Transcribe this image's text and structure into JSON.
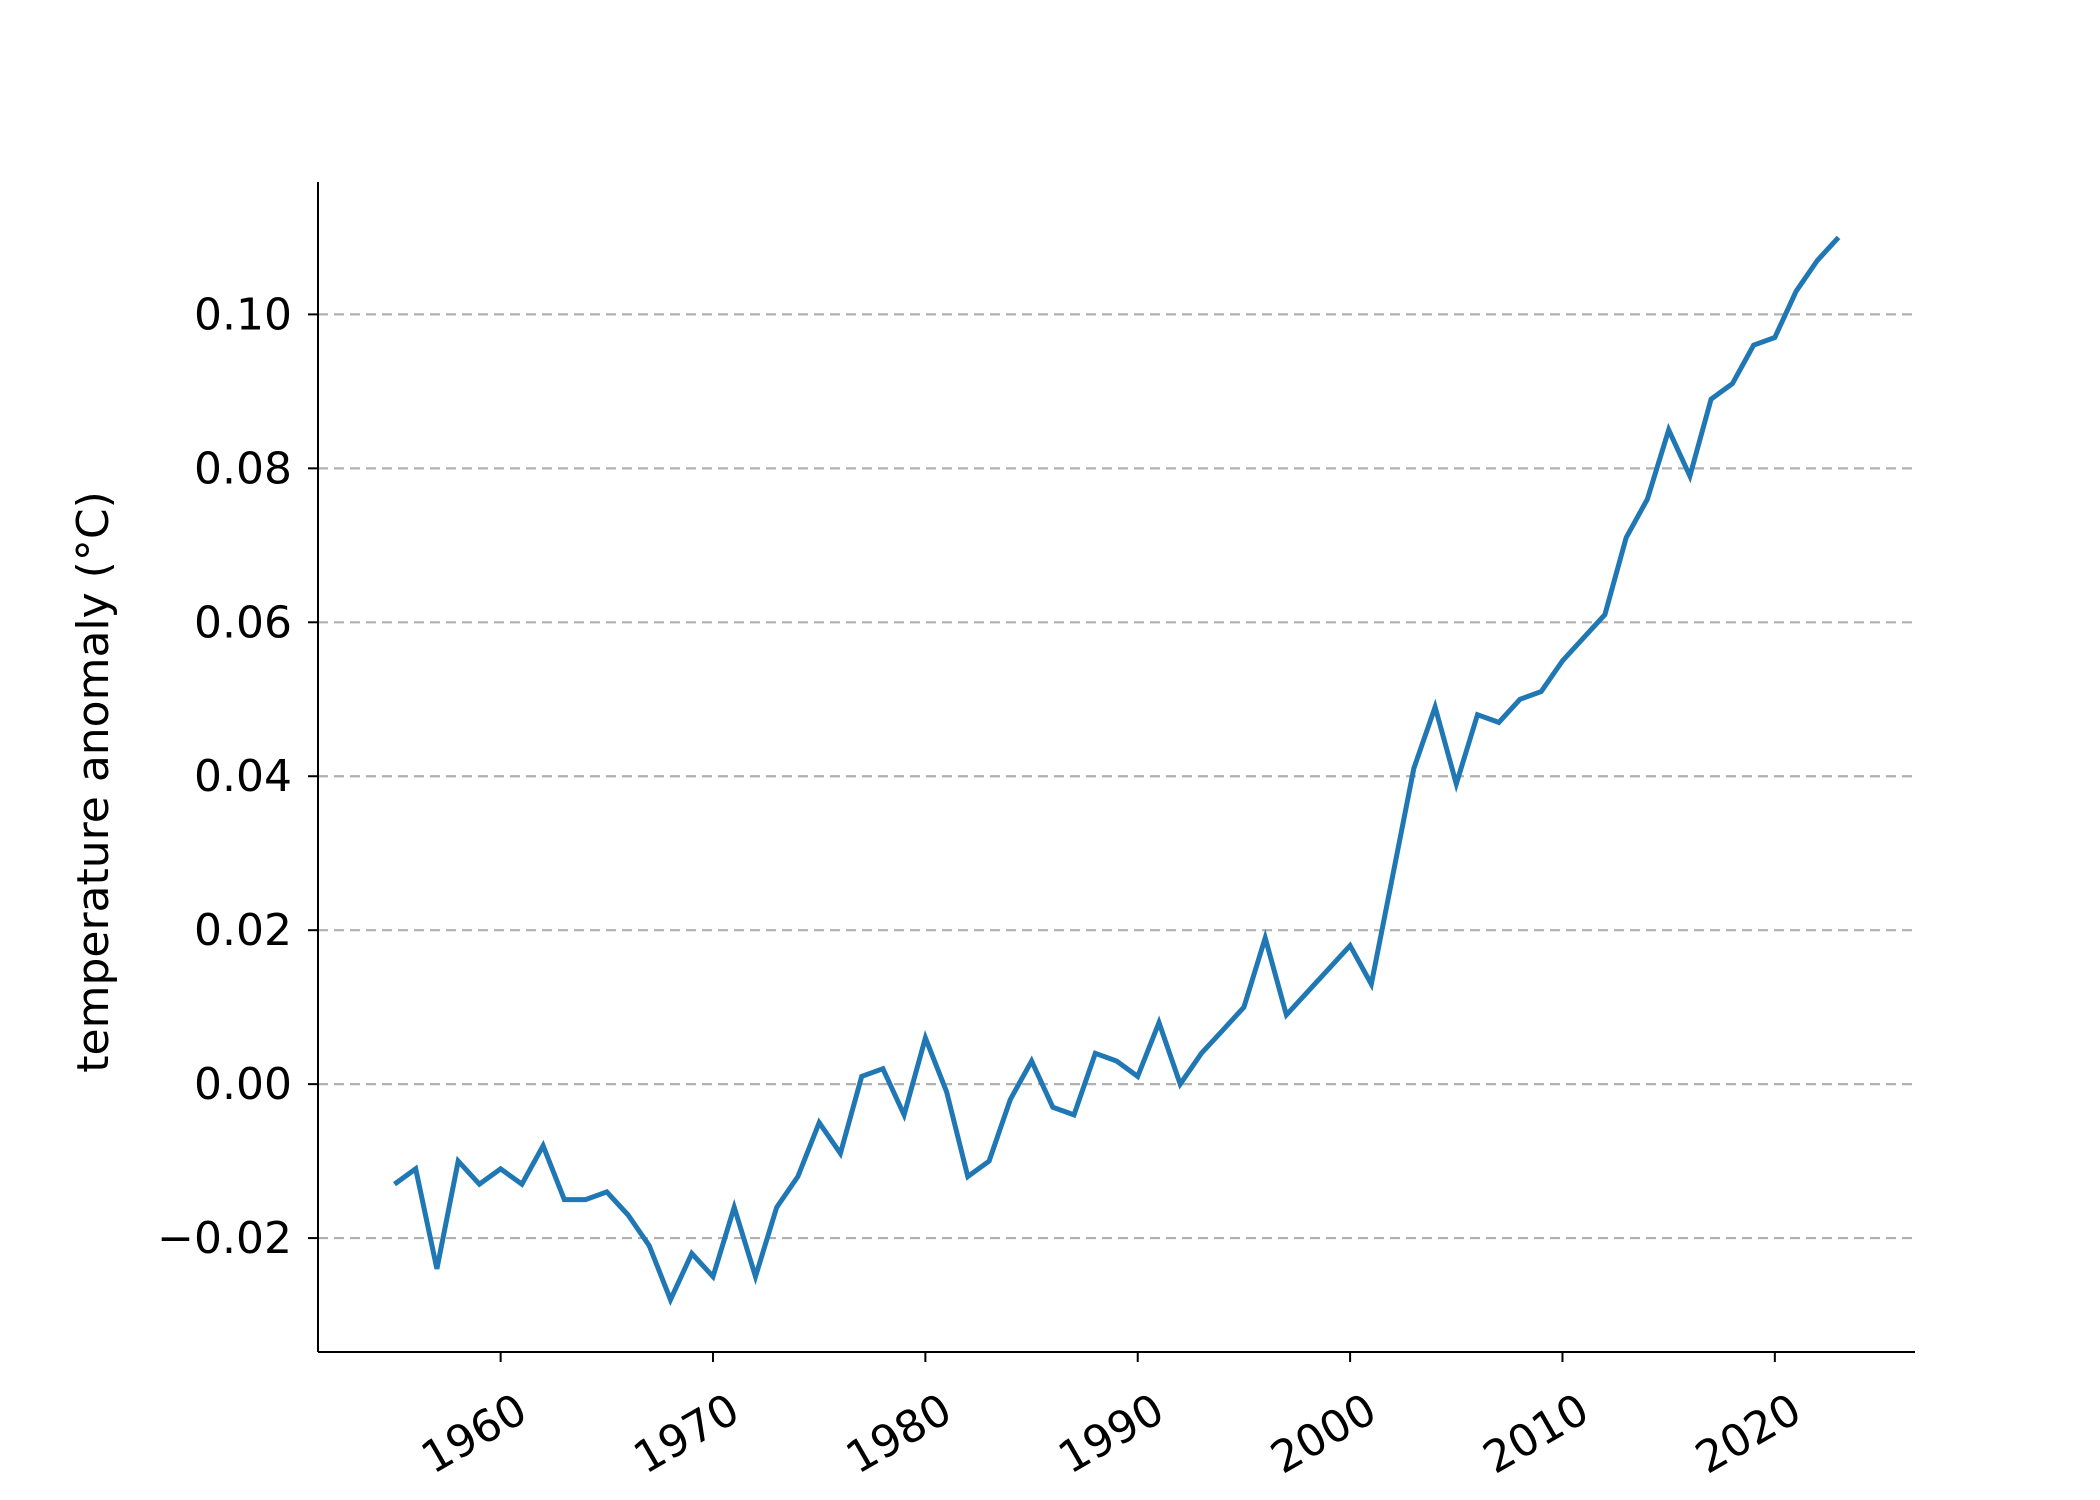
{
  "chart_data": {
    "type": "line",
    "title": "",
    "xlabel": "",
    "ylabel": "temperature anomaly (°C)",
    "xlim": [
      1951.4,
      2026.6
    ],
    "ylim": [
      -0.0348,
      0.1172
    ],
    "grid": {
      "y": true,
      "x": false,
      "style": "dashed"
    },
    "legend": "none",
    "x_ticks": [
      1960,
      1970,
      1980,
      1990,
      2000,
      2010,
      2020
    ],
    "x_tick_labels": [
      "1960",
      "1970",
      "1980",
      "1990",
      "2000",
      "2010",
      "2020"
    ],
    "y_ticks": [
      -0.02,
      0.0,
      0.02,
      0.04,
      0.06,
      0.08,
      0.1
    ],
    "y_tick_labels": [
      "−0.02",
      "0.00",
      "0.02",
      "0.04",
      "0.06",
      "0.08",
      "0.10"
    ],
    "series": [
      {
        "name": "temperature anomaly",
        "color": "#1f77b4",
        "x": [
          1955,
          1956,
          1957,
          1958,
          1959,
          1960,
          1961,
          1962,
          1963,
          1964,
          1965,
          1966,
          1967,
          1968,
          1969,
          1970,
          1971,
          1972,
          1973,
          1974,
          1975,
          1976,
          1977,
          1978,
          1979,
          1980,
          1981,
          1982,
          1983,
          1984,
          1985,
          1986,
          1987,
          1988,
          1989,
          1990,
          1991,
          1992,
          1993,
          1994,
          1995,
          1996,
          1997,
          1998,
          1999,
          2000,
          2001,
          2002,
          2003,
          2004,
          2005,
          2006,
          2007,
          2008,
          2009,
          2010,
          2011,
          2012,
          2013,
          2014,
          2015,
          2016,
          2017,
          2018,
          2019,
          2020,
          2021,
          2022,
          2023
        ],
        "values": [
          -0.013,
          -0.011,
          -0.024,
          -0.01,
          -0.013,
          -0.011,
          -0.013,
          -0.008,
          -0.015,
          -0.015,
          -0.014,
          -0.017,
          -0.021,
          -0.028,
          -0.022,
          -0.025,
          -0.016,
          -0.025,
          -0.016,
          -0.012,
          -0.005,
          -0.009,
          0.001,
          0.002,
          -0.004,
          0.006,
          -0.001,
          -0.012,
          -0.01,
          -0.002,
          0.003,
          -0.003,
          -0.004,
          0.004,
          0.003,
          0.001,
          0.008,
          0.0,
          0.004,
          0.007,
          0.01,
          0.019,
          0.009,
          0.012,
          0.015,
          0.018,
          0.013,
          0.027,
          0.041,
          0.049,
          0.039,
          0.048,
          0.047,
          0.05,
          0.051,
          0.055,
          0.058,
          0.061,
          0.071,
          0.076,
          0.085,
          0.079,
          0.089,
          0.091,
          0.096,
          0.097,
          0.103,
          0.107,
          0.11
        ]
      }
    ]
  }
}
